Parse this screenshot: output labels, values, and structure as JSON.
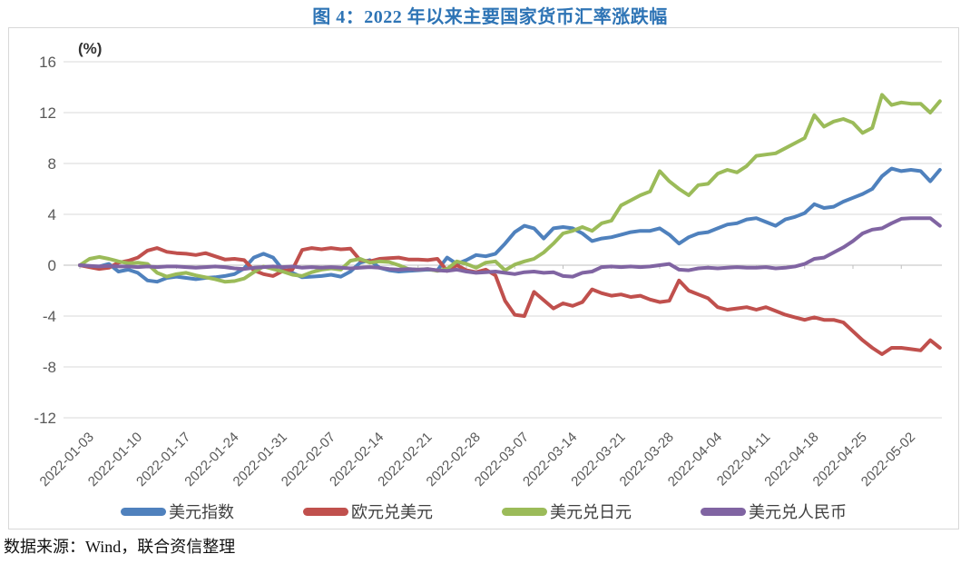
{
  "figure": {
    "title": "图 4：2022 年以来主要国家货币汇率涨跌幅",
    "title_color": "#2E74B5",
    "source_note": "数据来源：Wind，联合资信整理"
  },
  "chart_data": {
    "type": "line",
    "title": "图 4：2022 年以来主要国家货币汇率涨跌幅",
    "unit_label": "(%)",
    "ylim": [
      -12,
      16
    ],
    "yticks": [
      16,
      12,
      8,
      4,
      0,
      -4,
      -8,
      -12
    ],
    "grid": true,
    "legend_position": "bottom",
    "x_tick_labels": [
      "2022-01-03",
      "2022-01-10",
      "2022-01-17",
      "2022-01-24",
      "2022-01-31",
      "2022-02-07",
      "2022-02-14",
      "2022-02-21",
      "2022-02-28",
      "2022-03-07",
      "2022-03-14",
      "2022-03-21",
      "2022-03-28",
      "2022-04-04",
      "2022-04-11",
      "2022-04-18",
      "2022-04-25",
      "2022-05-02"
    ],
    "points_per_tick": 5,
    "series": [
      {
        "id": "usd-index",
        "name": "美元指数",
        "color": "#4F81BD",
        "values": [
          0,
          -0.1,
          -0.1,
          0.1,
          -0.5,
          -0.35,
          -0.6,
          -1.2,
          -1.3,
          -1.0,
          -0.9,
          -1.0,
          -1.1,
          -1.0,
          -0.95,
          -0.85,
          -0.7,
          -0.25,
          0.6,
          0.9,
          0.6,
          -0.35,
          -0.6,
          -0.95,
          -0.9,
          -0.85,
          -0.75,
          -0.9,
          -0.5,
          0.2,
          0.4,
          -0.2,
          -0.4,
          -0.5,
          -0.45,
          -0.4,
          -0.35,
          -0.4,
          0.6,
          0.1,
          0.4,
          0.8,
          0.7,
          0.9,
          1.7,
          2.6,
          3.1,
          2.9,
          2.1,
          2.9,
          3.0,
          2.9,
          2.5,
          1.9,
          2.1,
          2.2,
          2.4,
          2.6,
          2.7,
          2.7,
          2.9,
          2.4,
          1.7,
          2.2,
          2.5,
          2.6,
          2.9,
          3.2,
          3.3,
          3.6,
          3.7,
          3.4,
          3.1,
          3.6,
          3.8,
          4.1,
          4.8,
          4.5,
          4.6,
          5.0,
          5.3,
          5.6,
          6.0,
          7.0,
          7.6,
          7.4,
          7.5,
          7.4,
          6.6,
          7.5
        ]
      },
      {
        "id": "eur-usd",
        "name": "欧元兑美元",
        "color": "#C0504D",
        "values": [
          0,
          -0.15,
          -0.3,
          -0.2,
          0.2,
          0.35,
          0.6,
          1.15,
          1.35,
          1.05,
          0.95,
          0.9,
          0.8,
          0.95,
          0.7,
          0.45,
          0.5,
          0.4,
          -0.4,
          -0.7,
          -0.85,
          -0.45,
          -0.35,
          1.2,
          1.35,
          1.25,
          1.35,
          1.25,
          1.3,
          0.4,
          0.3,
          0.5,
          0.55,
          0.6,
          0.45,
          0.45,
          0.4,
          0.5,
          -0.45,
          0.0,
          -0.4,
          -0.55,
          -0.35,
          -0.8,
          -2.8,
          -3.9,
          -4.0,
          -2.1,
          -2.75,
          -3.4,
          -3.0,
          -3.2,
          -2.9,
          -1.9,
          -2.2,
          -2.4,
          -2.3,
          -2.5,
          -2.4,
          -2.7,
          -2.9,
          -2.8,
          -1.2,
          -2.0,
          -2.3,
          -2.6,
          -3.3,
          -3.5,
          -3.4,
          -3.3,
          -3.5,
          -3.3,
          -3.6,
          -3.9,
          -4.1,
          -4.3,
          -4.1,
          -4.3,
          -4.3,
          -4.5,
          -5.2,
          -5.9,
          -6.5,
          -7.0,
          -6.5,
          -6.5,
          -6.6,
          -6.7,
          -5.9,
          -6.5
        ]
      },
      {
        "id": "usd-jpy",
        "name": "美元兑日元",
        "color": "#9BBB59",
        "values": [
          0,
          0.5,
          0.65,
          0.5,
          0.3,
          0.15,
          0.2,
          0.1,
          -0.6,
          -0.9,
          -0.7,
          -0.6,
          -0.8,
          -0.95,
          -1.1,
          -1.3,
          -1.25,
          -1.05,
          -0.55,
          -0.1,
          -0.3,
          -0.5,
          -0.75,
          -0.85,
          -0.55,
          -0.35,
          -0.25,
          -0.35,
          0.35,
          0.5,
          0.2,
          0.3,
          0.25,
          0.0,
          -0.3,
          -0.35,
          -0.3,
          -0.45,
          -0.3,
          0.3,
          0.1,
          -0.2,
          0.2,
          0.3,
          -0.4,
          0.05,
          0.3,
          0.5,
          1.0,
          1.7,
          2.5,
          2.7,
          3.0,
          2.7,
          3.3,
          3.5,
          4.7,
          5.1,
          5.5,
          5.8,
          7.4,
          6.6,
          6.0,
          5.5,
          6.3,
          6.4,
          7.2,
          7.5,
          7.3,
          7.8,
          8.6,
          8.7,
          8.8,
          9.2,
          9.6,
          10.0,
          11.8,
          10.9,
          11.3,
          11.5,
          11.2,
          10.4,
          10.8,
          13.4,
          12.6,
          12.8,
          12.7,
          12.7,
          12.0,
          12.9
        ]
      },
      {
        "id": "usd-cny",
        "name": "美元兑人民币",
        "color": "#8064A2",
        "values": [
          0,
          -0.05,
          -0.1,
          -0.05,
          -0.1,
          -0.1,
          -0.15,
          -0.1,
          -0.15,
          -0.1,
          -0.1,
          -0.15,
          -0.2,
          -0.15,
          -0.1,
          -0.15,
          -0.25,
          -0.3,
          -0.2,
          -0.15,
          -0.1,
          -0.15,
          -0.1,
          -0.2,
          -0.15,
          -0.2,
          -0.15,
          -0.2,
          -0.25,
          -0.2,
          -0.15,
          -0.2,
          -0.3,
          -0.35,
          -0.3,
          -0.35,
          -0.3,
          -0.4,
          -0.45,
          -0.35,
          -0.5,
          -0.6,
          -0.55,
          -0.5,
          -0.6,
          -0.7,
          -0.55,
          -0.5,
          -0.6,
          -0.55,
          -0.85,
          -0.9,
          -0.6,
          -0.5,
          -0.15,
          -0.1,
          -0.15,
          -0.1,
          -0.15,
          -0.1,
          0.0,
          0.1,
          -0.35,
          -0.4,
          -0.25,
          -0.2,
          -0.25,
          -0.2,
          -0.15,
          -0.2,
          -0.2,
          -0.15,
          -0.25,
          -0.2,
          -0.1,
          0.1,
          0.5,
          0.6,
          1.0,
          1.4,
          1.9,
          2.5,
          2.8,
          2.9,
          3.3,
          3.65,
          3.7,
          3.7,
          3.7,
          3.1
        ]
      }
    ]
  }
}
